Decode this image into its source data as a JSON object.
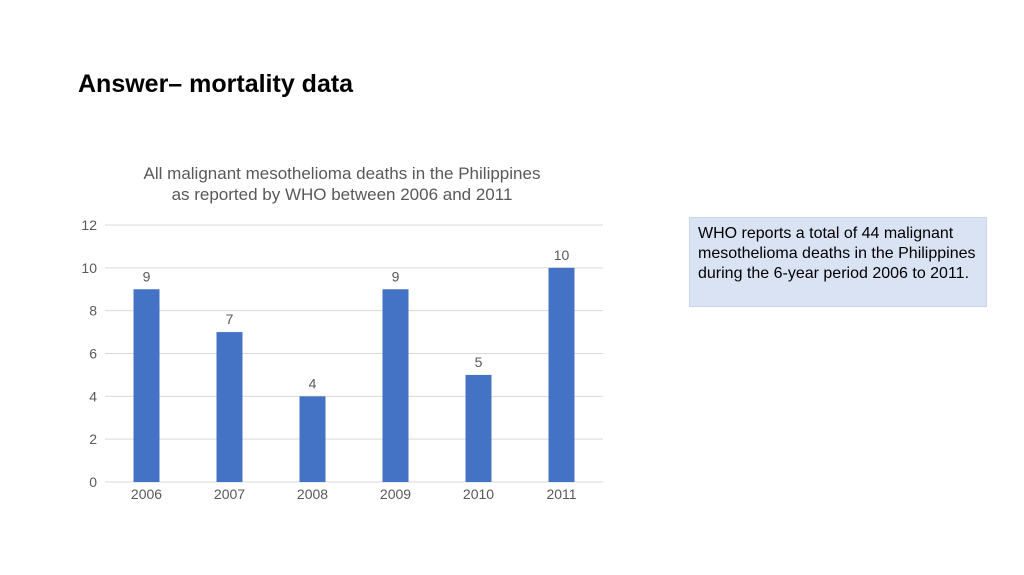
{
  "slide": {
    "title": "Answer– mortality data"
  },
  "note": {
    "text": "WHO reports a total of 44 malignant mesothelioma deaths in the Philippines during the 6-year period 2006 to 2011."
  },
  "colors": {
    "bar": "#4472c4",
    "gridline": "#d9d9d9",
    "axis_text": "#595959",
    "note_background": "#dae3f3"
  },
  "chart_data": {
    "type": "bar",
    "title_lines": [
      "All malignant mesothelioma deaths in the Philippines",
      "as reported by WHO between 2006 and 2011"
    ],
    "categories": [
      "2006",
      "2007",
      "2008",
      "2009",
      "2010",
      "2011"
    ],
    "values": [
      9,
      7,
      4,
      9,
      5,
      10
    ],
    "data_labels": [
      "9",
      "7",
      "4",
      "9",
      "5",
      "10"
    ],
    "xlabel": "",
    "ylabel": "",
    "ylim": [
      0,
      12
    ],
    "yticks": [
      0,
      2,
      4,
      6,
      8,
      10,
      12
    ],
    "grid": true,
    "legend": "none"
  }
}
